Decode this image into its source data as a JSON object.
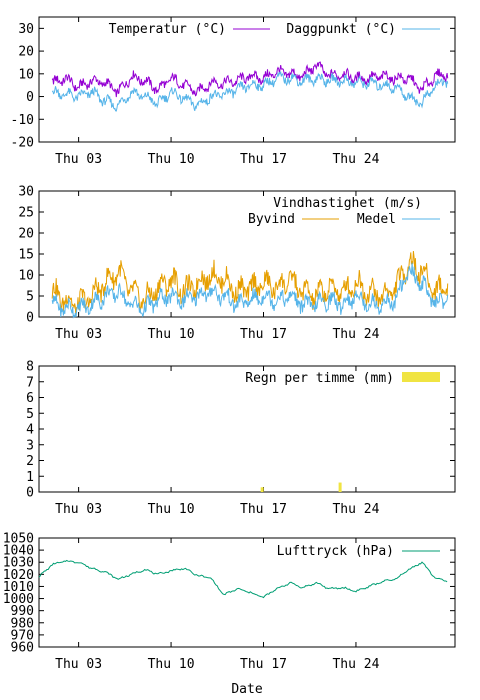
{
  "xlabel": "Date",
  "xtick_labels": [
    "Thu 03",
    "Thu 10",
    "Thu 17",
    "Thu 24"
  ],
  "chart_data": [
    {
      "type": "line",
      "ylim": [
        -20,
        35
      ],
      "yticks": [
        -20,
        -10,
        0,
        10,
        20,
        30
      ],
      "legend_placement": "top-right",
      "series": [
        {
          "name": "Temperatur (°C)",
          "color": "#9400d3",
          "x": [
            1,
            2,
            3,
            4,
            5,
            6,
            7,
            8,
            9,
            10,
            11,
            12,
            13,
            14,
            15,
            16,
            17,
            18,
            19,
            20,
            21,
            22,
            23,
            24,
            25,
            26,
            27,
            28,
            29,
            30,
            31
          ],
          "y": [
            6,
            8,
            4,
            7,
            6,
            2,
            9,
            7,
            3,
            8,
            5,
            2,
            6,
            6,
            7,
            9,
            8,
            11,
            10,
            9,
            14,
            9,
            10,
            8,
            8,
            9,
            8,
            8,
            3,
            9,
            10
          ]
        },
        {
          "name": "Daggpunkt (°C)",
          "color": "#56b4e9",
          "x": [
            1,
            2,
            3,
            4,
            5,
            6,
            7,
            8,
            9,
            10,
            11,
            12,
            13,
            14,
            15,
            16,
            17,
            18,
            19,
            20,
            21,
            22,
            23,
            24,
            25,
            26,
            27,
            28,
            29,
            30,
            31
          ],
          "y": [
            2,
            1,
            0,
            2,
            -2,
            -4,
            2,
            0,
            -3,
            2,
            -1,
            -4,
            0,
            1,
            3,
            5,
            5,
            8,
            8,
            7,
            8,
            7,
            7,
            6,
            6,
            5,
            4,
            0,
            -3,
            5,
            7
          ]
        }
      ]
    },
    {
      "type": "line",
      "ylim": [
        0,
        30
      ],
      "yticks": [
        0,
        5,
        10,
        15,
        20,
        25,
        30
      ],
      "title": "Vindhastighet (m/s)",
      "legend_placement": "top-right",
      "series": [
        {
          "name": "Byvind",
          "color": "#e69f00",
          "x": [
            1,
            2,
            3,
            4,
            5,
            6,
            7,
            8,
            9,
            10,
            11,
            12,
            13,
            14,
            15,
            16,
            17,
            18,
            19,
            20,
            21,
            22,
            23,
            24,
            25,
            26,
            27,
            28,
            29,
            30,
            31
          ],
          "y": [
            6,
            4,
            3,
            5,
            8,
            11,
            6,
            4,
            7,
            9,
            6,
            8,
            10,
            9,
            6,
            7,
            8,
            7,
            9,
            6,
            5,
            7,
            6,
            8,
            6,
            5,
            7,
            13,
            11,
            6,
            8
          ]
        },
        {
          "name": "Medel",
          "color": "#56b4e9",
          "x": [
            1,
            2,
            3,
            4,
            5,
            6,
            7,
            8,
            9,
            10,
            11,
            12,
            13,
            14,
            15,
            16,
            17,
            18,
            19,
            20,
            21,
            22,
            23,
            24,
            25,
            26,
            27,
            28,
            29,
            30,
            31
          ],
          "y": [
            3,
            2,
            2,
            3,
            5,
            6,
            3,
            2,
            4,
            5,
            4,
            5,
            6,
            5,
            3,
            4,
            5,
            4,
            5,
            3,
            3,
            4,
            3,
            5,
            3,
            3,
            4,
            11,
            8,
            3,
            5
          ]
        }
      ]
    },
    {
      "type": "bar",
      "ylim": [
        0,
        8
      ],
      "yticks": [
        0,
        1,
        2,
        3,
        4,
        5,
        6,
        7,
        8
      ],
      "legend_placement": "top-right",
      "series": [
        {
          "name": "Regn per timme (mm)",
          "color": "#f0e442",
          "x": [
            16.9,
            22.8
          ],
          "y": [
            0.3,
            0.6
          ]
        }
      ]
    },
    {
      "type": "line",
      "ylim": [
        960,
        1050
      ],
      "yticks": [
        960,
        970,
        980,
        990,
        1000,
        1010,
        1020,
        1030,
        1040,
        1050
      ],
      "legend_placement": "top-right",
      "series": [
        {
          "name": "Lufttryck (hPa)",
          "color": "#009e73",
          "x": [
            0,
            1,
            2,
            3,
            4,
            5,
            6,
            7,
            8,
            9,
            10,
            11,
            12,
            13,
            14,
            15,
            16,
            17,
            18,
            19,
            20,
            21,
            22,
            23,
            24,
            25,
            26,
            27,
            28,
            29,
            30,
            31
          ],
          "y": [
            1018,
            1028,
            1031,
            1030,
            1025,
            1022,
            1016,
            1020,
            1024,
            1020,
            1023,
            1025,
            1019,
            1017,
            1003,
            1008,
            1005,
            1001,
            1008,
            1013,
            1009,
            1013,
            1008,
            1009,
            1006,
            1010,
            1014,
            1016,
            1024,
            1030,
            1017,
            1014
          ]
        }
      ]
    }
  ]
}
